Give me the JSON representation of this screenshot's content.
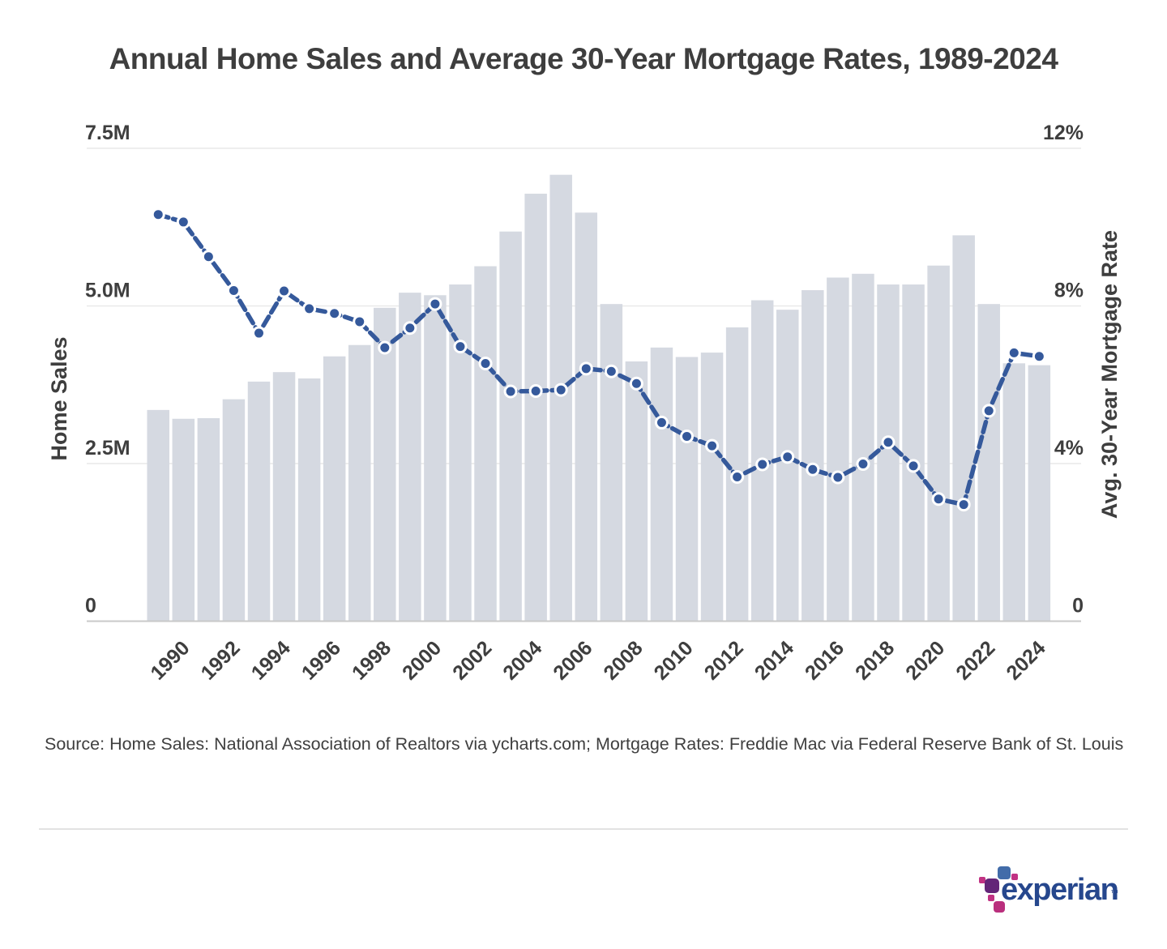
{
  "title": "Annual Home Sales and Average 30-Year Mortgage Rates, 1989-2024",
  "source": "Source: Home Sales: National Association of Realtors via ycharts.com; Mortgage Rates: Freddie Mac via Federal Reserve Bank of St. Louis",
  "chart_data": {
    "type": "bar",
    "subtype": "combo-bar-line",
    "title": "Annual Home Sales and Average 30-Year Mortgage Rates, 1989-2024",
    "grid": true,
    "legend": "none",
    "categories": [
      1989,
      1990,
      1991,
      1992,
      1993,
      1994,
      1995,
      1996,
      1997,
      1998,
      1999,
      2000,
      2001,
      2002,
      2003,
      2004,
      2005,
      2006,
      2007,
      2008,
      2009,
      2010,
      2011,
      2012,
      2013,
      2014,
      2015,
      2016,
      2017,
      2018,
      2019,
      2020,
      2021,
      2022,
      2023,
      2024
    ],
    "series": [
      {
        "name": "Home Sales",
        "type": "bar",
        "axis": "left",
        "unit": "millions",
        "values": [
          3.35,
          3.21,
          3.22,
          3.52,
          3.8,
          3.95,
          3.85,
          4.2,
          4.38,
          4.97,
          5.21,
          5.17,
          5.34,
          5.63,
          6.18,
          6.78,
          7.08,
          6.48,
          5.03,
          4.12,
          4.34,
          4.19,
          4.26,
          4.66,
          5.09,
          4.94,
          5.25,
          5.45,
          5.51,
          5.34,
          5.34,
          5.64,
          6.12,
          5.03,
          4.09,
          4.06
        ]
      },
      {
        "name": "Avg. 30-Year Mortgage Rate",
        "type": "line",
        "axis": "right",
        "unit": "percent",
        "values": [
          10.32,
          10.13,
          9.25,
          8.39,
          7.31,
          8.38,
          7.93,
          7.81,
          7.6,
          6.94,
          7.44,
          8.05,
          6.97,
          6.54,
          5.83,
          5.84,
          5.87,
          6.41,
          6.34,
          6.03,
          5.04,
          4.69,
          4.45,
          3.66,
          3.98,
          4.17,
          3.85,
          3.65,
          3.99,
          4.54,
          3.94,
          3.1,
          2.96,
          5.34,
          6.81,
          6.72
        ]
      }
    ],
    "left_axis": {
      "title": "Home Sales",
      "min": 0,
      "max": 7.5,
      "ticks": [
        {
          "value": 0,
          "label": "0"
        },
        {
          "value": 2.5,
          "label": "2.5M"
        },
        {
          "value": 5.0,
          "label": "5.0M"
        },
        {
          "value": 7.5,
          "label": "7.5M"
        }
      ]
    },
    "right_axis": {
      "title": "Avg. 30-Year Mortgage Rate",
      "min": 0,
      "max": 12,
      "ticks": [
        {
          "value": 0,
          "label": "0"
        },
        {
          "value": 4,
          "label": "4%"
        },
        {
          "value": 8,
          "label": "8%"
        },
        {
          "value": 12,
          "label": "12%"
        }
      ]
    },
    "x_axis": {
      "labeled_years": [
        1990,
        1992,
        1994,
        1996,
        1998,
        2000,
        2002,
        2004,
        2006,
        2008,
        2010,
        2012,
        2014,
        2016,
        2018,
        2020,
        2022,
        2024
      ]
    },
    "colors": {
      "bar": "#d5d9e1",
      "line": "#35599b",
      "point_ring": "#ffffff",
      "gridline": "#e9e9e9",
      "axis_line": "#c9c9c9",
      "text": "#3e3e3e"
    }
  },
  "logo": {
    "wordmark": "experian",
    "trademark": "TM",
    "colors": {
      "wordmark_blue": "#26478d",
      "square_blue": "#426ca9",
      "square_purple": "#632678",
      "square_magenta": "#ba2f7d",
      "dot_magenta": "#c13283"
    }
  }
}
